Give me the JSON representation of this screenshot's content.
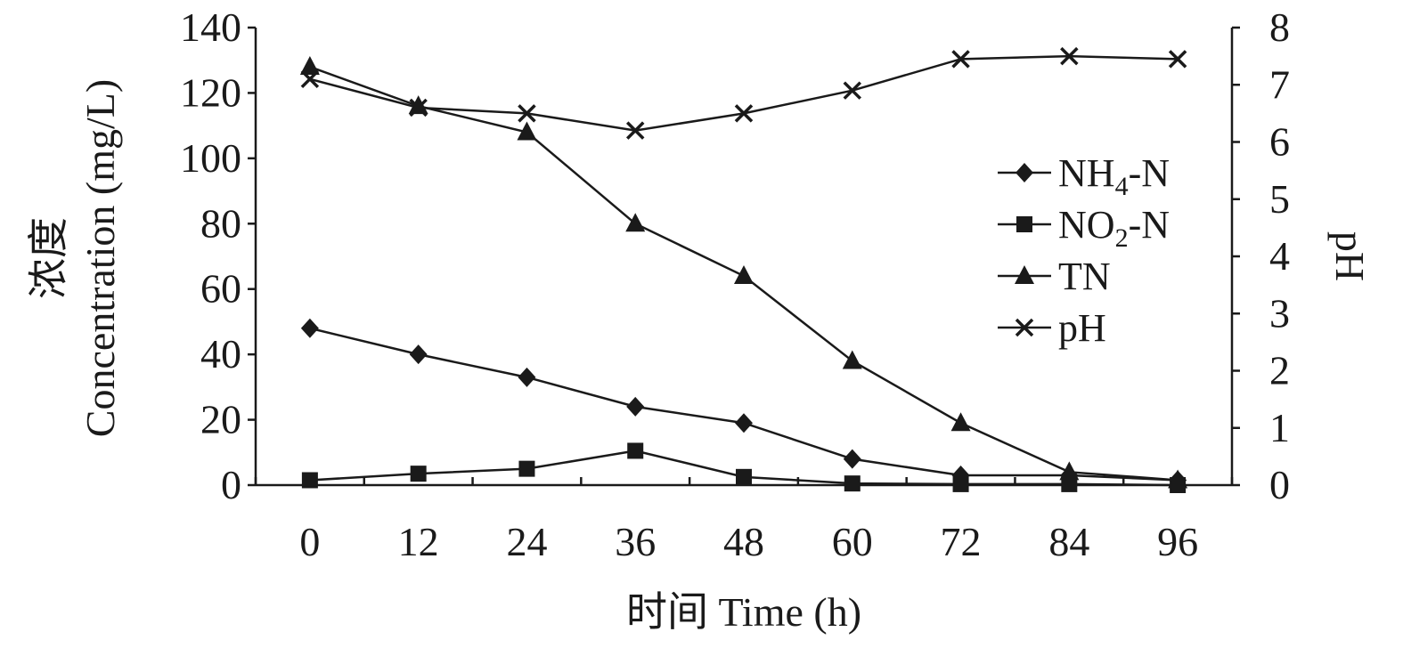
{
  "chart_data": {
    "type": "line",
    "x": [
      0,
      12,
      24,
      36,
      48,
      60,
      72,
      84,
      96
    ],
    "xticks": [
      "0",
      "12",
      "24",
      "36",
      "48",
      "60",
      "72",
      "84",
      "96"
    ],
    "xlim": [
      -6,
      102
    ],
    "xlabel": "时间 Time (h)",
    "ylabel_left_cn": "浓度",
    "ylabel_left_en": "Concentration (mg/L)",
    "ylabel_right": "pH",
    "ylim_left": [
      0,
      140
    ],
    "yticks_left": [
      "0",
      "20",
      "40",
      "60",
      "80",
      "100",
      "120",
      "140"
    ],
    "ylim_right": [
      0,
      8
    ],
    "yticks_right": [
      "0",
      "1",
      "2",
      "3",
      "4",
      "5",
      "6",
      "7",
      "8"
    ],
    "grid": false,
    "legend_position": "right",
    "series": [
      {
        "name": "NH4-N",
        "legend_main": "NH",
        "legend_sub": "4",
        "legend_tail": "-N",
        "marker": "diamond",
        "axis": "left",
        "values": [
          48,
          40,
          33,
          24,
          19,
          8,
          3,
          3,
          1.5
        ]
      },
      {
        "name": "NO2-N",
        "legend_main": "NO",
        "legend_sub": "2",
        "legend_tail": "-N",
        "marker": "square",
        "axis": "left",
        "values": [
          1.5,
          3.5,
          5,
          10.5,
          2.5,
          0.5,
          0.3,
          0.3,
          0
        ]
      },
      {
        "name": "TN",
        "legend_main": "TN",
        "legend_sub": "",
        "legend_tail": "",
        "marker": "triangle",
        "axis": "left",
        "values": [
          128,
          116,
          108,
          80,
          64,
          38,
          19,
          4,
          1.5
        ]
      },
      {
        "name": "pH",
        "legend_main": "pH",
        "legend_sub": "",
        "legend_tail": "",
        "marker": "x",
        "axis": "right",
        "values": [
          7.1,
          6.6,
          6.5,
          6.2,
          6.5,
          6.9,
          7.45,
          7.5,
          7.45
        ]
      }
    ]
  }
}
